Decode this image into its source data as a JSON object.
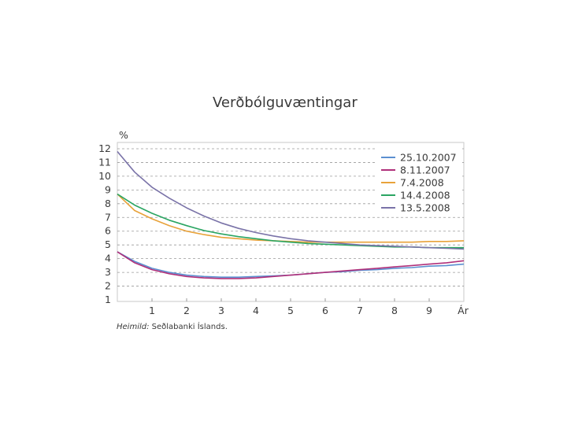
{
  "chart_data": {
    "type": "line",
    "title": "Verðbólguvæntingar",
    "ylabel": "%",
    "xlabel": "Ár",
    "source_prefix": "Heimild:",
    "source_text": " Seðlabanki Íslands.",
    "ylim": [
      1,
      12
    ],
    "xlim": [
      0,
      10
    ],
    "y_ticks": [
      "1",
      "2",
      "3",
      "4",
      "5",
      "6",
      "7",
      "8",
      "9",
      "10",
      "11",
      "12"
    ],
    "x_ticks": [
      "1",
      "2",
      "3",
      "4",
      "5",
      "6",
      "7",
      "8",
      "9"
    ],
    "grid": "horizontal-dashed",
    "legend_position": "top-right",
    "x": [
      0,
      0.5,
      1,
      1.5,
      2,
      2.5,
      3,
      3.5,
      4,
      4.5,
      5,
      5.5,
      6,
      6.5,
      7,
      7.5,
      8,
      8.5,
      9,
      9.5,
      10
    ],
    "series": [
      {
        "name": "25.10.2007",
        "color": "#5b8fd0",
        "values": [
          4.5,
          3.8,
          3.3,
          3.0,
          2.8,
          2.7,
          2.65,
          2.65,
          2.7,
          2.75,
          2.8,
          2.9,
          3.0,
          3.05,
          3.15,
          3.2,
          3.3,
          3.35,
          3.45,
          3.5,
          3.6
        ]
      },
      {
        "name": "8.11.2007",
        "color": "#b0307a",
        "values": [
          4.5,
          3.7,
          3.2,
          2.9,
          2.7,
          2.6,
          2.55,
          2.55,
          2.6,
          2.7,
          2.8,
          2.9,
          3.0,
          3.1,
          3.2,
          3.3,
          3.4,
          3.5,
          3.6,
          3.7,
          3.85
        ]
      },
      {
        "name": "7.4.2008",
        "color": "#e8a23a",
        "values": [
          8.7,
          7.5,
          6.9,
          6.4,
          6.0,
          5.75,
          5.55,
          5.45,
          5.35,
          5.3,
          5.25,
          5.2,
          5.2,
          5.2,
          5.2,
          5.2,
          5.2,
          5.2,
          5.25,
          5.25,
          5.3
        ]
      },
      {
        "name": "14.4.2008",
        "color": "#2aa562",
        "values": [
          8.7,
          7.9,
          7.3,
          6.8,
          6.4,
          6.05,
          5.8,
          5.6,
          5.45,
          5.3,
          5.2,
          5.1,
          5.05,
          5.0,
          4.95,
          4.9,
          4.85,
          4.85,
          4.8,
          4.8,
          4.8
        ]
      },
      {
        "name": "13.5.2008",
        "color": "#7a73a8",
        "values": [
          11.8,
          10.3,
          9.2,
          8.4,
          7.7,
          7.1,
          6.6,
          6.2,
          5.9,
          5.65,
          5.45,
          5.3,
          5.2,
          5.1,
          5.0,
          4.95,
          4.9,
          4.85,
          4.8,
          4.75,
          4.7
        ]
      }
    ]
  }
}
